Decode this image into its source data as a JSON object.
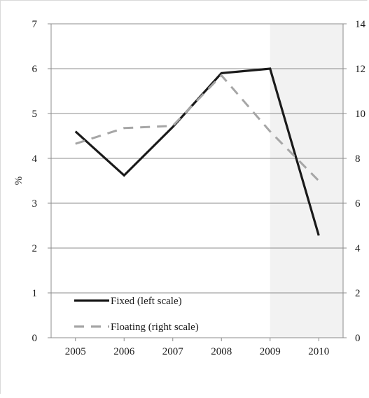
{
  "chart_data": {
    "type": "line",
    "title": "",
    "categories": [
      "2005",
      "2006",
      "2007",
      "2008",
      "2009",
      "2010"
    ],
    "shaded_categories": [
      "2009",
      "2010"
    ],
    "shade_color": "#f2f2f2",
    "grid": true,
    "legend_position": "bottom-left",
    "left_axis": {
      "label": "%",
      "min": 0,
      "max": 7,
      "ticks": [
        "0",
        "1",
        "2",
        "3",
        "4",
        "5",
        "6",
        "7"
      ]
    },
    "right_axis": {
      "label": "",
      "min": 0,
      "max": 14,
      "ticks": [
        "0",
        "2",
        "4",
        "6",
        "8",
        "10",
        "12",
        "14"
      ]
    },
    "series": [
      {
        "name": "Fixed (left scale)",
        "axis": "left",
        "values": [
          4.6,
          3.62,
          4.7,
          5.9,
          6.0,
          2.28
        ],
        "color": "#1a1a1a",
        "dash": "solid"
      },
      {
        "name": "Floating (right scale)",
        "axis": "right",
        "values": [
          8.65,
          9.35,
          9.45,
          11.7,
          9.2,
          7.0
        ],
        "color": "#a6a6a6",
        "dash": "dashed"
      }
    ]
  }
}
